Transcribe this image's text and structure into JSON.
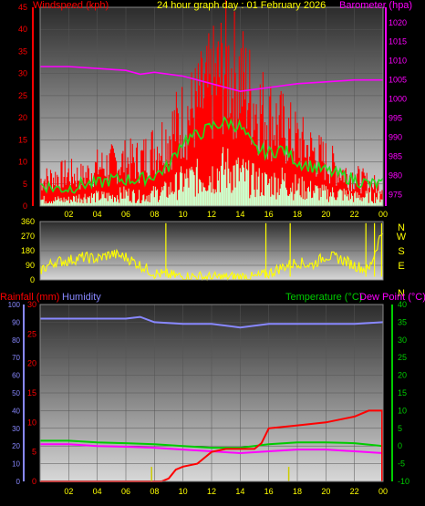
{
  "header": {
    "title": "24 hour graph day : 01 February 2026",
    "wind_label": "Windspeed (kph)",
    "baro_label": "Barometer (hpa)"
  },
  "lower_header": {
    "rain_label": "Rainfall (mm)",
    "humidity_label": "Humidity",
    "temp_label": "Temperature (°C)",
    "dew_label": "Dew Point (°C)"
  },
  "colors": {
    "wind": "#ff0000",
    "gust_avg": "#22dd22",
    "wind_avg": "#ccffcc",
    "baro": "#ff00ff",
    "direction": "#ffff00",
    "rain": "#ff0000",
    "humidity": "#8888ff",
    "temperature": "#00cc00",
    "dewpoint": "#ff00ff",
    "compass": "#ffff00"
  },
  "chart_data": [
    {
      "type": "line",
      "title": "24 hour graph day : 01 February 2026",
      "x_tick_labels": [
        "02",
        "04",
        "06",
        "08",
        "10",
        "12",
        "14",
        "16",
        "18",
        "20",
        "22",
        "00"
      ],
      "x_range_hours": [
        0,
        24
      ],
      "y_left": {
        "label": "Windspeed (kph)",
        "range": [
          0,
          45
        ],
        "ticks": [
          "0",
          "5",
          "10",
          "15",
          "20",
          "25",
          "30",
          "35",
          "40",
          "45"
        ]
      },
      "y_right": {
        "label": "Barometer (hpa)",
        "range": [
          972,
          1024
        ],
        "ticks": [
          "975",
          "980",
          "985",
          "990",
          "995",
          "1000",
          "1005",
          "1010",
          "1015",
          "1020"
        ]
      },
      "series": [
        {
          "name": "Windspeed",
          "axis": "left",
          "color": "#ff0000",
          "x": [
            0,
            1,
            2,
            3,
            4,
            5,
            6,
            7,
            8,
            9,
            10,
            11,
            12,
            13,
            14,
            15,
            16,
            17,
            18,
            19,
            20,
            21,
            22,
            23,
            24
          ],
          "values": [
            8,
            9,
            10,
            9,
            12,
            13,
            14,
            14,
            18,
            22,
            27,
            31,
            37,
            43,
            40,
            32,
            28,
            24,
            20,
            17,
            14,
            11,
            9,
            7,
            6
          ]
        },
        {
          "axis": "left",
          "color": "#22dd22",
          "x": [
            0,
            1,
            2,
            3,
            4,
            5,
            6,
            7,
            8,
            9,
            10,
            11,
            12,
            13,
            14,
            15,
            16,
            17,
            18,
            19,
            20,
            21,
            22,
            23,
            24
          ],
          "values": [
            5,
            4,
            4,
            5,
            5,
            6,
            6,
            6,
            7,
            9,
            15,
            16,
            18,
            19,
            18,
            13,
            12,
            13,
            10,
            9,
            8,
            7,
            6,
            5,
            5
          ]
        },
        {
          "axis": "left",
          "color": "#ccffcc",
          "x": [
            0,
            1,
            2,
            3,
            4,
            5,
            6,
            7,
            8,
            9,
            10,
            11,
            12,
            13,
            14,
            15,
            16,
            17,
            18,
            19,
            20,
            21,
            22,
            23,
            24
          ],
          "values": [
            2,
            2,
            2,
            3,
            3,
            3,
            4,
            3,
            4,
            5,
            8,
            9,
            10,
            12,
            10,
            8,
            7,
            8,
            6,
            5,
            4,
            4,
            3,
            3,
            3
          ]
        },
        {
          "name": "Barometer",
          "axis": "right",
          "color": "#ff00ff",
          "x": [
            0,
            2,
            4,
            6,
            7,
            8,
            10,
            12,
            14,
            15,
            16,
            18,
            20,
            22,
            24
          ],
          "values": [
            1008.5,
            1008.5,
            1008,
            1007.5,
            1006.5,
            1007,
            1006,
            1004,
            1002,
            1002.5,
            1003,
            1004,
            1004.5,
            1005,
            1005
          ]
        }
      ]
    },
    {
      "type": "scatter",
      "x_range_hours": [
        0,
        24
      ],
      "y_left": {
        "range": [
          0,
          360
        ],
        "ticks": [
          "0",
          "90",
          "180",
          "270",
          "360"
        ]
      },
      "compass_labels": [
        "N",
        "W",
        "S",
        "E",
        "N"
      ],
      "series": [
        {
          "color": "#ffff00",
          "x": [
            0,
            1,
            2,
            3,
            4,
            5,
            6,
            7,
            8,
            9,
            10,
            11,
            12,
            13,
            14,
            15,
            16,
            17,
            18,
            19,
            20,
            21,
            22,
            23,
            24
          ],
          "values": [
            60,
            110,
            120,
            140,
            130,
            160,
            140,
            90,
            40,
            30,
            20,
            20,
            15,
            15,
            20,
            15,
            40,
            80,
            110,
            90,
            150,
            130,
            90,
            60,
            320
          ]
        }
      ]
    },
    {
      "type": "line",
      "x_tick_labels": [
        "02",
        "04",
        "06",
        "08",
        "10",
        "12",
        "14",
        "16",
        "18",
        "20",
        "22",
        "00"
      ],
      "x_range_hours": [
        0,
        24
      ],
      "y_humidity": {
        "label": "Humidity",
        "range": [
          0,
          100
        ],
        "ticks": [
          "0",
          "10",
          "20",
          "30",
          "40",
          "50",
          "60",
          "70",
          "80",
          "90",
          "100"
        ]
      },
      "y_rain": {
        "label": "Rainfall (mm)",
        "range": [
          0,
          30
        ],
        "ticks": [
          "0",
          "5",
          "10",
          "15",
          "20",
          "25",
          "30"
        ]
      },
      "y_temp": {
        "label": "Temperature (°C)",
        "range": [
          -10,
          40
        ],
        "ticks": [
          "-10",
          "-5",
          "0",
          "5",
          "10",
          "15",
          "20",
          "25",
          "30",
          "35",
          "40"
        ]
      },
      "series": [
        {
          "name": "Humidity",
          "axis": "humidity",
          "color": "#8888ff",
          "x": [
            0,
            2,
            4,
            6,
            7,
            8,
            10,
            12,
            14,
            16,
            18,
            20,
            22,
            24
          ],
          "values": [
            92,
            92,
            92,
            92,
            93,
            90,
            89,
            89,
            87,
            89,
            89,
            89,
            89,
            90
          ]
        },
        {
          "name": "Rainfall (mm)",
          "axis": "rain",
          "color": "#ff0000",
          "x": [
            0,
            2,
            4,
            6,
            8,
            8.5,
            9,
            9.5,
            10,
            11,
            12,
            13,
            14,
            15,
            15.5,
            16,
            18,
            20,
            22,
            23,
            24
          ],
          "values": [
            0,
            0,
            0,
            0,
            0,
            0,
            0.5,
            2,
            2.5,
            3,
            5,
            5.5,
            5.5,
            5.5,
            6.5,
            9,
            9.5,
            10,
            11,
            12,
            12
          ]
        },
        {
          "name": "Temperature (°C)",
          "axis": "temp",
          "color": "#00cc00",
          "x": [
            0,
            2,
            4,
            6,
            8,
            10,
            12,
            14,
            16,
            18,
            20,
            22,
            24
          ],
          "values": [
            1.5,
            1.5,
            1,
            0.8,
            0.5,
            0,
            -0.5,
            -0.5,
            0.5,
            1,
            1,
            0.8,
            0
          ]
        },
        {
          "name": "Dew Point (°C)",
          "axis": "temp",
          "color": "#ff00ff",
          "x": [
            0,
            2,
            4,
            6,
            8,
            10,
            12,
            14,
            16,
            18,
            20,
            22,
            24
          ],
          "values": [
            0.5,
            0.5,
            0,
            -0.2,
            -0.5,
            -1,
            -1.5,
            -2,
            -1.5,
            -1,
            -1,
            -1.5,
            -2
          ]
        }
      ]
    }
  ]
}
